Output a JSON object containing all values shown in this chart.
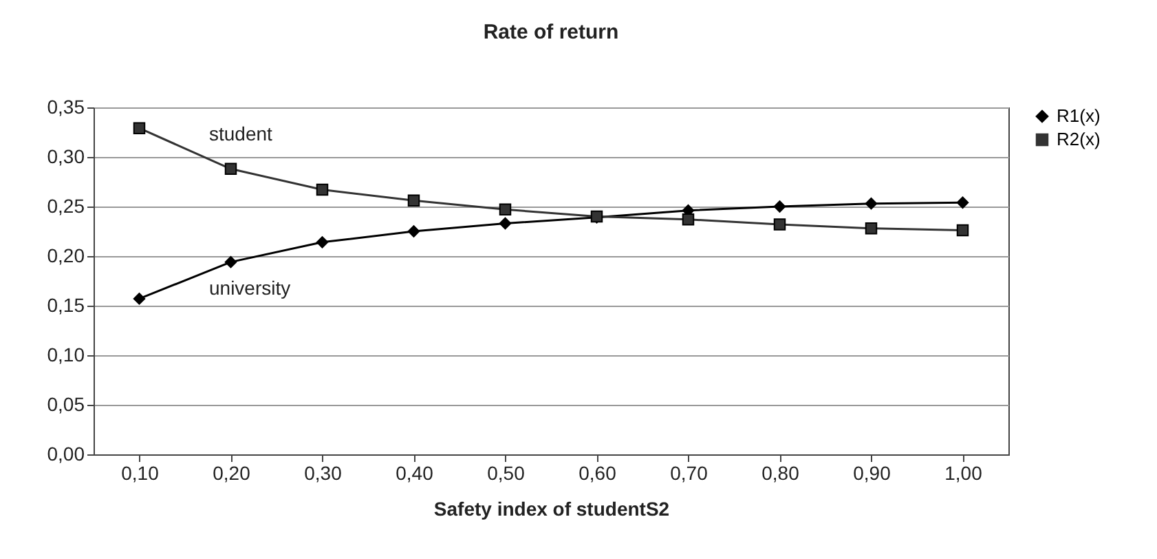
{
  "chart_data": {
    "type": "line",
    "title": "Rate of return",
    "xlabel": "Safety index of studentS2",
    "categories": [
      "0,10",
      "0,20",
      "0,30",
      "0,40",
      "0,50",
      "0,60",
      "0,70",
      "0,80",
      "0,90",
      "1,00"
    ],
    "series": [
      {
        "name": "R1(x)",
        "color": "#000000",
        "marker": "diamond",
        "values": [
          0.157,
          0.194,
          0.214,
          0.225,
          0.233,
          0.239,
          0.246,
          0.25,
          0.253,
          0.254
        ]
      },
      {
        "name": "R2(x)",
        "color": "#333333",
        "marker": "square",
        "values": [
          0.329,
          0.288,
          0.267,
          0.256,
          0.247,
          0.24,
          0.237,
          0.232,
          0.228,
          0.226
        ]
      }
    ],
    "ylim": [
      0,
      0.35
    ],
    "yticks": [
      {
        "value": 0,
        "label": "0,00"
      },
      {
        "value": 0.05,
        "label": "0,05"
      },
      {
        "value": 0.1,
        "label": "0,10"
      },
      {
        "value": 0.15,
        "label": "0,15"
      },
      {
        "value": 0.2,
        "label": "0,20"
      },
      {
        "value": 0.25,
        "label": "0,25"
      },
      {
        "value": 0.3,
        "label": "0,30"
      },
      {
        "value": 0.35,
        "label": "0,35"
      }
    ],
    "annotations": [
      "student",
      "university"
    ],
    "grid": "y",
    "legend": "right",
    "line_style": "solid"
  }
}
